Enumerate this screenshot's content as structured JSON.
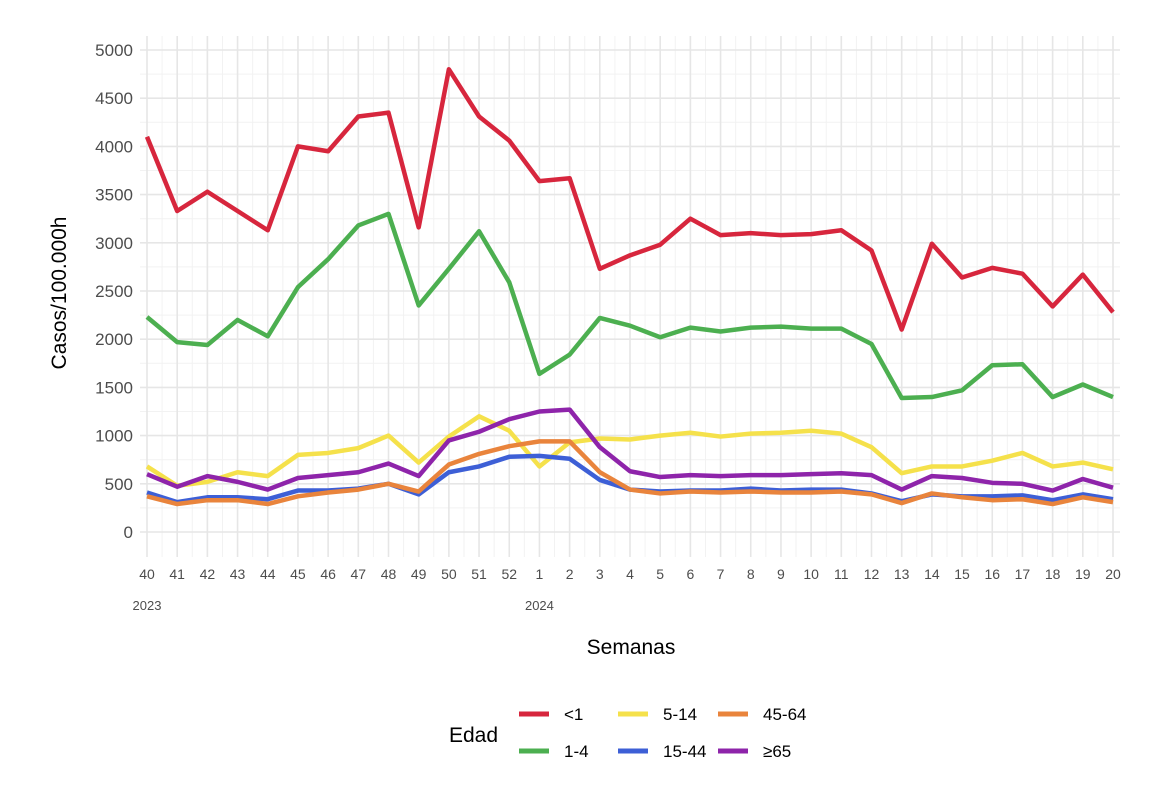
{
  "chart_data": {
    "type": "line",
    "xlabel": "Semanas",
    "ylabel": "Casos/100.000h",
    "ylim": [
      0,
      5000
    ],
    "yticks": [
      0,
      500,
      1000,
      1500,
      2000,
      2500,
      3000,
      3500,
      4000,
      4500,
      5000
    ],
    "grid": true,
    "categories": [
      "40",
      "41",
      "42",
      "43",
      "44",
      "45",
      "46",
      "47",
      "48",
      "49",
      "50",
      "51",
      "52",
      "1",
      "2",
      "3",
      "4",
      "5",
      "6",
      "7",
      "8",
      "9",
      "10",
      "11",
      "12",
      "13",
      "14",
      "15",
      "16",
      "17",
      "18",
      "19",
      "20"
    ],
    "year_labels": [
      {
        "text": "2023",
        "at": "40"
      },
      {
        "text": "2024",
        "at": "1"
      }
    ],
    "legend": {
      "title": "Edad",
      "position": "bottom"
    },
    "series": [
      {
        "name": "<1",
        "color": "#d7263d",
        "values": [
          4100,
          3330,
          3530,
          3330,
          3130,
          4000,
          3950,
          4310,
          4350,
          3160,
          4800,
          4310,
          4060,
          3640,
          3670,
          2730,
          2870,
          2980,
          3250,
          3080,
          3100,
          3080,
          3090,
          3130,
          2920,
          2100,
          2990,
          2640,
          2740,
          2680,
          2340,
          2670,
          2280
        ]
      },
      {
        "name": "1-4",
        "color": "#4caf50",
        "values": [
          2230,
          1970,
          1940,
          2200,
          2030,
          2540,
          2830,
          3180,
          3300,
          2350,
          2730,
          3120,
          2590,
          1640,
          1840,
          2220,
          2140,
          2020,
          2120,
          2080,
          2120,
          2130,
          2110,
          2110,
          1950,
          1390,
          1400,
          1470,
          1730,
          1740,
          1400,
          1530,
          1400
        ]
      },
      {
        "name": "5-14",
        "color": "#f5e14b",
        "values": [
          680,
          480,
          520,
          620,
          580,
          800,
          820,
          870,
          1000,
          720,
          990,
          1200,
          1050,
          680,
          930,
          970,
          960,
          1000,
          1030,
          990,
          1020,
          1030,
          1050,
          1020,
          880,
          610,
          680,
          680,
          740,
          820,
          680,
          720,
          650
        ]
      },
      {
        "name": "15-44",
        "color": "#3d5fd6",
        "values": [
          410,
          310,
          360,
          360,
          340,
          430,
          430,
          450,
          500,
          390,
          620,
          680,
          780,
          790,
          760,
          540,
          440,
          420,
          430,
          430,
          450,
          430,
          440,
          440,
          400,
          320,
          390,
          370,
          370,
          380,
          330,
          390,
          340
        ]
      },
      {
        "name": "45-64",
        "color": "#e9843c",
        "values": [
          370,
          290,
          330,
          330,
          290,
          370,
          410,
          440,
          500,
          420,
          700,
          810,
          890,
          940,
          940,
          620,
          440,
          400,
          420,
          410,
          420,
          410,
          410,
          420,
          390,
          300,
          400,
          360,
          330,
          340,
          290,
          360,
          310
        ]
      },
      {
        "name": "≥65",
        "color": "#8e24aa",
        "values": [
          600,
          470,
          580,
          520,
          440,
          560,
          590,
          620,
          710,
          580,
          950,
          1040,
          1170,
          1250,
          1270,
          880,
          630,
          570,
          590,
          580,
          590,
          590,
          600,
          610,
          590,
          440,
          580,
          560,
          510,
          500,
          430,
          550,
          460
        ]
      }
    ]
  }
}
